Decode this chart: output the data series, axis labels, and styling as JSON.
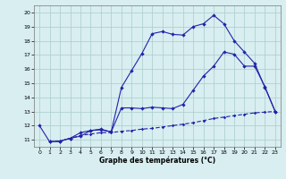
{
  "line1_x": [
    0,
    1,
    2,
    3,
    4,
    5,
    6,
    7,
    8,
    9,
    10,
    11,
    12,
    13,
    14,
    15,
    16,
    17,
    18,
    19,
    20,
    21,
    22,
    23
  ],
  "line1_y": [
    12.0,
    10.85,
    10.9,
    11.1,
    11.25,
    11.65,
    11.7,
    11.55,
    14.7,
    15.9,
    17.1,
    18.5,
    18.65,
    18.45,
    18.4,
    19.0,
    19.2,
    19.8,
    19.2,
    18.0,
    17.2,
    16.4,
    14.7,
    13.0
  ],
  "line2_x": [
    1,
    2,
    3,
    4,
    5,
    6,
    7,
    8,
    9,
    10,
    11,
    12,
    13,
    14,
    15,
    16,
    17,
    18,
    19,
    20,
    21,
    22,
    23
  ],
  "line2_y": [
    10.85,
    10.9,
    11.1,
    11.5,
    11.65,
    11.75,
    11.55,
    13.25,
    13.25,
    13.2,
    13.3,
    13.25,
    13.2,
    13.5,
    14.5,
    15.5,
    16.2,
    17.2,
    17.05,
    16.2,
    16.2,
    14.75,
    13.0
  ],
  "line3_x": [
    1,
    2,
    3,
    4,
    5,
    6,
    7,
    8,
    9,
    10,
    11,
    12,
    13,
    14,
    15,
    16,
    17,
    18,
    19,
    20,
    21,
    22,
    23
  ],
  "line3_y": [
    10.85,
    10.9,
    11.1,
    11.3,
    11.4,
    11.5,
    11.5,
    11.6,
    11.65,
    11.75,
    11.8,
    11.9,
    12.0,
    12.1,
    12.2,
    12.35,
    12.5,
    12.6,
    12.7,
    12.8,
    12.9,
    12.95,
    13.0
  ],
  "line_color": "#2222aa",
  "bg_color": "#d8eef0",
  "grid_color": "#aacccc",
  "xlabel": "Graphe des températures (°C)",
  "xlim": [
    -0.5,
    23.5
  ],
  "ylim": [
    10.5,
    20.5
  ],
  "yticks": [
    11,
    12,
    13,
    14,
    15,
    16,
    17,
    18,
    19,
    20
  ],
  "xticks": [
    0,
    1,
    2,
    3,
    4,
    5,
    6,
    7,
    8,
    9,
    10,
    11,
    12,
    13,
    14,
    15,
    16,
    17,
    18,
    19,
    20,
    21,
    22,
    23
  ]
}
